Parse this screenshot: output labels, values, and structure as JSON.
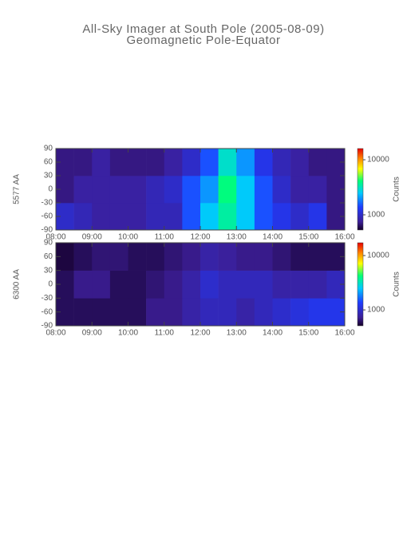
{
  "title": "All-Sky Imager at South Pole (2005-08-09)",
  "subtitle": "Geomagnetic Pole-Equator",
  "chart_data": [
    {
      "type": "heatmap",
      "ylabel": "5577 AA",
      "xbins": [
        8,
        8.5,
        9,
        9.5,
        10,
        10.5,
        11,
        11.5,
        12,
        12.5,
        13,
        13.5,
        14,
        14.5,
        15,
        15.5,
        16
      ],
      "ybins": [
        -90,
        -30,
        30,
        90
      ],
      "z": [
        [
          1000,
          900,
          800,
          800,
          800,
          900,
          900,
          1500,
          2500,
          3500,
          2500,
          1500,
          1200,
          1000,
          1200,
          700
        ],
        [
          700,
          800,
          800,
          800,
          800,
          900,
          1000,
          1500,
          2000,
          4000,
          2500,
          1500,
          1000,
          800,
          800,
          700
        ],
        [
          700,
          700,
          800,
          700,
          700,
          700,
          800,
          1000,
          1500,
          3000,
          2000,
          1200,
          900,
          800,
          700,
          700
        ]
      ],
      "xlim": [
        8,
        16
      ],
      "xticks": [
        {
          "value": 8,
          "label": "08:00"
        },
        {
          "value": 9,
          "label": "09:00"
        },
        {
          "value": 10,
          "label": "10:00"
        },
        {
          "value": 11,
          "label": "11:00"
        },
        {
          "value": 12,
          "label": "12:00"
        },
        {
          "value": 13,
          "label": "13:00"
        },
        {
          "value": 14,
          "label": "14:00"
        },
        {
          "value": 15,
          "label": "15:00"
        },
        {
          "value": 16,
          "label": "16:00"
        }
      ],
      "ylim": [
        -90,
        90
      ],
      "yticks": [
        90,
        60,
        30,
        0,
        -30,
        -60,
        -90
      ],
      "zlim": [
        530,
        16000
      ],
      "zticks": [
        1000,
        10000
      ],
      "zlog": true,
      "zlabel": "Counts"
    },
    {
      "type": "heatmap",
      "ylabel": "6300 AA",
      "xbins": [
        8,
        8.5,
        9,
        9.5,
        10,
        10.5,
        11,
        11.5,
        12,
        12.5,
        13,
        13.5,
        14,
        14.5,
        15,
        15.5,
        16
      ],
      "ybins": [
        -90,
        -30,
        30,
        90
      ],
      "z": [
        [
          600,
          600,
          600,
          600,
          600,
          700,
          700,
          800,
          900,
          900,
          800,
          900,
          1000,
          1100,
          1200,
          1200
        ],
        [
          600,
          700,
          700,
          600,
          600,
          650,
          700,
          800,
          1000,
          900,
          900,
          900,
          800,
          800,
          800,
          900
        ],
        [
          550,
          600,
          650,
          650,
          600,
          600,
          650,
          700,
          800,
          750,
          700,
          700,
          650,
          600,
          600,
          600
        ]
      ],
      "xlim": [
        8,
        16
      ],
      "xticks": [
        {
          "value": 8,
          "label": "08:00"
        },
        {
          "value": 9,
          "label": "09:00"
        },
        {
          "value": 10,
          "label": "10:00"
        },
        {
          "value": 11,
          "label": "11:00"
        },
        {
          "value": 12,
          "label": "12:00"
        },
        {
          "value": 13,
          "label": "13:00"
        },
        {
          "value": 14,
          "label": "14:00"
        },
        {
          "value": 15,
          "label": "15:00"
        },
        {
          "value": 16,
          "label": "16:00"
        }
      ],
      "ylim": [
        -90,
        90
      ],
      "yticks": [
        90,
        60,
        30,
        0,
        -30,
        -60,
        -90
      ],
      "zlim": [
        510,
        17200
      ],
      "zticks": [
        1000,
        10000
      ],
      "zlog": true,
      "zlabel": "Counts"
    }
  ]
}
